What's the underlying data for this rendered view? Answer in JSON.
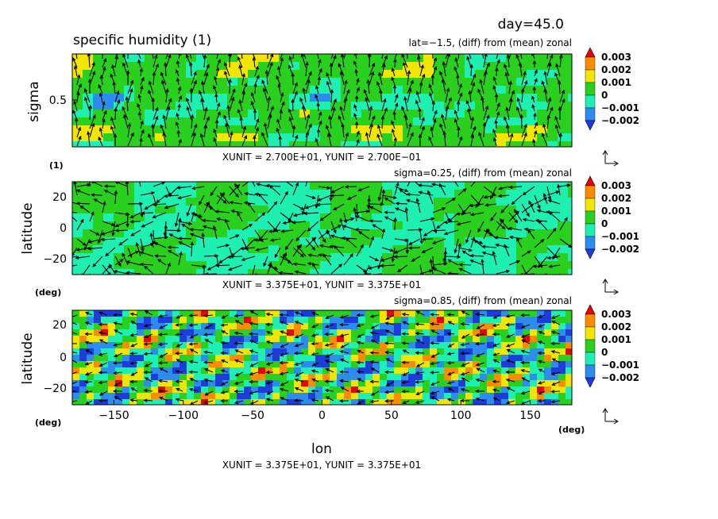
{
  "header": {
    "day_label": "day=45.0",
    "main_title": "specific humidity (1)",
    "x_axis_title": "lon",
    "x_units": "(deg)",
    "bottom_unit_note": "XUNIT = 3.375E+01, YUNIT = 3.375E+01"
  },
  "colorbar": {
    "levels": [
      "0.003",
      "0.002",
      "0.001",
      "0",
      "−0.001",
      "−0.002"
    ],
    "colors": [
      "#e8000b",
      "#ff8c00",
      "#f2e600",
      "#29d01e",
      "#1ef0b4",
      "#2d8cf0",
      "#1e3cdc"
    ]
  },
  "chart_data": [
    {
      "type": "heatmap",
      "title": "lat=−1.5, (diff) from (mean) zonal",
      "ylabel": "sigma",
      "yunits": "(1)",
      "yticks": [
        "0.5"
      ],
      "ylim": [
        1.0,
        0.0
      ],
      "xlim": [
        -180,
        180
      ],
      "vector_note": "XUNIT = 2.700E+01, YUNIT = 2.700E−01",
      "legend": "colorbar right",
      "has_vectors": true
    },
    {
      "type": "heatmap",
      "title": "sigma=0.25, (diff) from (mean) zonal",
      "ylabel": "latitude",
      "yunits": "(deg)",
      "yticks": [
        "20",
        "0",
        "−20"
      ],
      "ylim": [
        -30,
        30
      ],
      "xlim": [
        -180,
        180
      ],
      "vector_note": "XUNIT = 3.375E+01, YUNIT = 3.375E+01",
      "legend": "colorbar right",
      "has_vectors": true
    },
    {
      "type": "heatmap",
      "title": "sigma=0.85, (diff) from (mean) zonal",
      "ylabel": "latitude",
      "yunits": "(deg)",
      "yticks": [
        "20",
        "0",
        "−20"
      ],
      "xticks": [
        "−150",
        "−100",
        "−50",
        "0",
        "50",
        "100",
        "150"
      ],
      "xtick_values": [
        -150,
        -100,
        -50,
        0,
        50,
        100,
        150
      ],
      "ylim": [
        -30,
        30
      ],
      "xlim": [
        -180,
        180
      ],
      "legend": "colorbar right",
      "has_vectors": true
    }
  ]
}
